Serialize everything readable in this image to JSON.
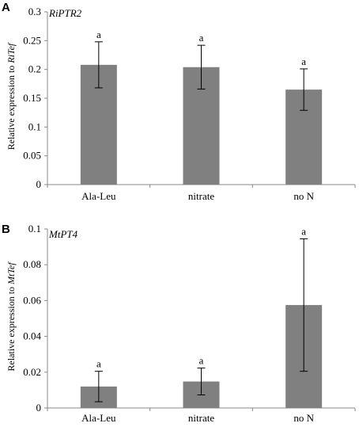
{
  "chart_data": [
    {
      "type": "bar",
      "panel": "A",
      "gene_label": "RiPTR2",
      "ylabel_prefix": "Relative expression to ",
      "ylabel_gene": "RiTef",
      "xlabel": "",
      "categories": [
        "Ala-Leu",
        "nitrate",
        "no N"
      ],
      "values": [
        0.208,
        0.204,
        0.165
      ],
      "errors": [
        0.04,
        0.038,
        0.036
      ],
      "significance": [
        "a",
        "a",
        "a"
      ],
      "ylim": [
        0,
        0.3
      ],
      "yticks": [
        0,
        0.05,
        0.1,
        0.15,
        0.2,
        0.25,
        0.3
      ],
      "ytick_labels": [
        "0",
        "0.05",
        "0.1",
        "0.15",
        "0.2",
        "0.25",
        "0.3"
      ],
      "grid": false,
      "bar_color": "#808080"
    },
    {
      "type": "bar",
      "panel": "B",
      "gene_label": "MtPT4",
      "ylabel_prefix": "Relative expression to ",
      "ylabel_gene": "MtTef",
      "xlabel": "",
      "categories": [
        "Ala-Leu",
        "nitrate",
        "no N"
      ],
      "values": [
        0.012,
        0.0148,
        0.0575
      ],
      "errors": [
        0.0085,
        0.0075,
        0.037
      ],
      "significance": [
        "a",
        "a",
        "a"
      ],
      "ylim": [
        0,
        0.1
      ],
      "yticks": [
        0,
        0.02,
        0.04,
        0.06,
        0.08,
        0.1
      ],
      "ytick_labels": [
        "0",
        "0.02",
        "0.04",
        "0.06",
        "0.08",
        "0.1"
      ],
      "grid": false,
      "bar_color": "#808080"
    }
  ]
}
